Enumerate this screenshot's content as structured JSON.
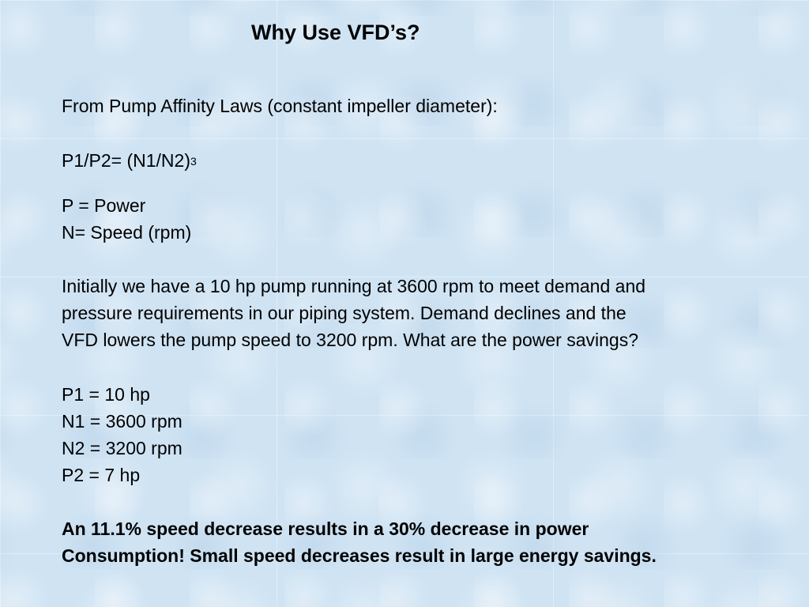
{
  "title": "Why Use VFD’s?",
  "intro": "From Pump Affinity Laws (constant impeller diameter):",
  "formula": {
    "base": "P1/P2= (N1/N2)",
    "exponent": "3"
  },
  "definitions": [
    "P = Power",
    "N= Speed (rpm)"
  ],
  "scenario_lines": [
    "Initially we have a 10 hp pump running at 3600 rpm to meet demand and",
    "pressure requirements in our piping system.  Demand declines and the",
    "VFD lowers the pump speed to 3200 rpm.  What are the power savings?"
  ],
  "values": [
    "P1 = 10 hp",
    "N1 = 3600 rpm",
    "N2 = 3200 rpm",
    "P2 = 7 hp"
  ],
  "conclusion_lines": [
    "An 11.1% speed decrease results in a 30% decrease in power",
    "Consumption!  Small speed decreases result in large energy savings."
  ],
  "colors": {
    "background": "#cfe3f3",
    "text": "#000000"
  }
}
